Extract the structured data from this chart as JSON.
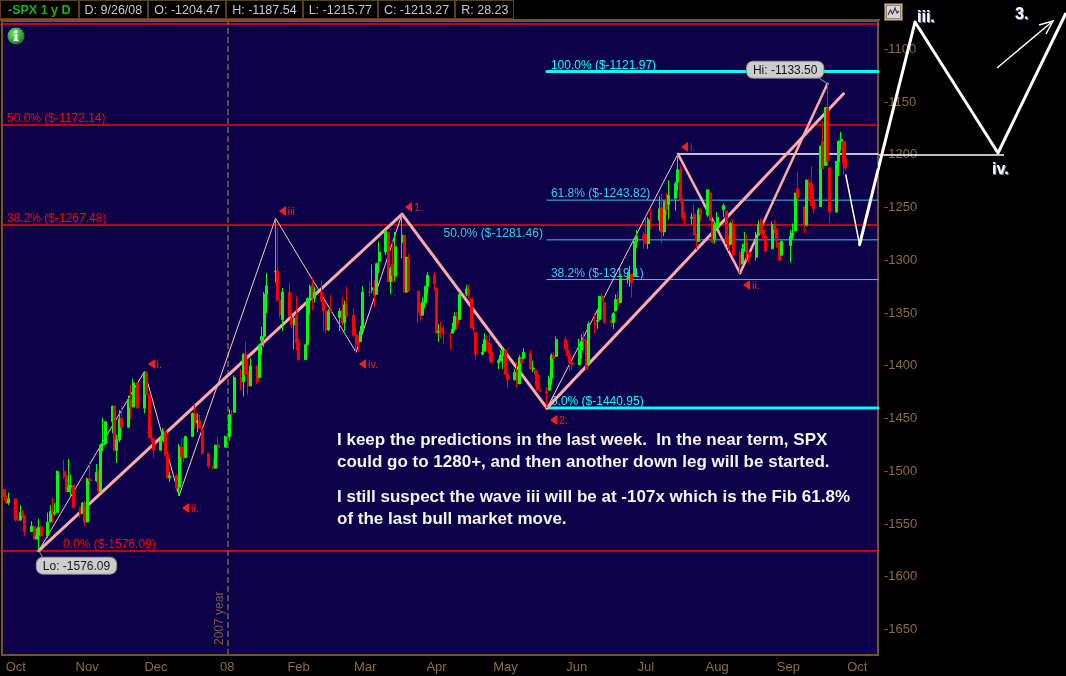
{
  "chart_data": {
    "type": "candlestick",
    "title": "-SPX 1 y D",
    "subtitle": "D: 9/26/08  O: -1204.47  H: -1187.54  L: -1215.77  C: -1213.27  R: 28.23",
    "x": [
      "2007-09-26",
      "2007-09-27",
      "2007-09-28",
      "2007-10-01",
      "2007-10-02",
      "2007-10-03",
      "2007-10-04",
      "2007-10-05",
      "2007-10-08",
      "2007-10-09",
      "2007-10-10",
      "2007-10-11",
      "2007-10-12",
      "2007-10-15",
      "2007-10-16",
      "2007-10-17",
      "2007-10-18",
      "2007-10-19",
      "2007-10-22",
      "2007-10-23",
      "2007-10-24",
      "2007-10-25",
      "2007-10-26",
      "2007-10-29",
      "2007-10-30",
      "2007-10-31",
      "2007-11-01",
      "2007-11-02",
      "2007-11-05",
      "2007-11-06",
      "2007-11-07",
      "2007-11-08",
      "2007-11-09",
      "2007-11-12",
      "2007-11-13",
      "2007-11-14",
      "2007-11-15",
      "2007-11-16",
      "2007-11-19",
      "2007-11-20",
      "2007-11-21",
      "2007-11-23",
      "2007-11-26",
      "2007-11-27",
      "2007-11-28",
      "2007-11-29",
      "2007-11-30",
      "2007-12-03",
      "2007-12-04",
      "2007-12-05",
      "2007-12-06",
      "2007-12-07",
      "2007-12-10",
      "2007-12-11",
      "2007-12-12",
      "2007-12-13",
      "2007-12-14",
      "2007-12-17",
      "2007-12-18",
      "2007-12-19",
      "2007-12-20",
      "2007-12-21",
      "2007-12-24",
      "2007-12-26",
      "2007-12-27",
      "2007-12-28",
      "2007-12-31",
      "2008-01-02",
      "2008-01-03",
      "2008-01-04",
      "2008-01-07",
      "2008-01-08",
      "2008-01-09",
      "2008-01-10",
      "2008-01-11",
      "2008-01-14",
      "2008-01-15",
      "2008-01-16",
      "2008-01-17",
      "2008-01-18",
      "2008-01-22",
      "2008-01-23",
      "2008-01-24",
      "2008-01-25",
      "2008-01-28",
      "2008-01-29",
      "2008-01-30",
      "2008-01-31",
      "2008-02-01",
      "2008-02-04",
      "2008-02-05",
      "2008-02-06",
      "2008-02-07",
      "2008-02-08",
      "2008-02-11",
      "2008-02-12",
      "2008-02-13",
      "2008-02-14",
      "2008-02-15",
      "2008-02-19",
      "2008-02-20",
      "2008-02-21",
      "2008-02-22",
      "2008-02-25",
      "2008-02-26",
      "2008-02-27",
      "2008-02-28",
      "2008-02-29",
      "2008-03-03",
      "2008-03-04",
      "2008-03-05",
      "2008-03-06",
      "2008-03-07",
      "2008-03-10",
      "2008-03-11",
      "2008-03-12",
      "2008-03-13",
      "2008-03-14",
      "2008-03-17",
      "2008-03-18",
      "2008-03-19",
      "2008-03-20",
      "2008-03-24",
      "2008-03-25",
      "2008-03-26",
      "2008-03-27",
      "2008-03-28",
      "2008-03-31",
      "2008-04-01",
      "2008-04-02",
      "2008-04-03",
      "2008-04-04",
      "2008-04-07",
      "2008-04-08",
      "2008-04-09",
      "2008-04-10",
      "2008-04-11",
      "2008-04-14",
      "2008-04-15",
      "2008-04-16",
      "2008-04-17",
      "2008-04-18",
      "2008-04-21",
      "2008-04-22",
      "2008-04-23",
      "2008-04-24",
      "2008-04-25",
      "2008-04-28",
      "2008-04-29",
      "2008-04-30",
      "2008-05-01",
      "2008-05-02",
      "2008-05-05",
      "2008-05-06",
      "2008-05-07",
      "2008-05-08",
      "2008-05-09",
      "2008-05-12",
      "2008-05-13",
      "2008-05-14",
      "2008-05-15",
      "2008-05-16",
      "2008-05-19",
      "2008-05-20",
      "2008-05-21",
      "2008-05-22",
      "2008-05-23",
      "2008-05-27",
      "2008-05-28",
      "2008-05-29",
      "2008-05-30",
      "2008-06-02",
      "2008-06-03",
      "2008-06-04",
      "2008-06-05",
      "2008-06-06",
      "2008-06-09",
      "2008-06-10",
      "2008-06-11",
      "2008-06-12",
      "2008-06-13",
      "2008-06-16",
      "2008-06-17",
      "2008-06-18",
      "2008-06-19",
      "2008-06-20",
      "2008-06-23",
      "2008-06-24",
      "2008-06-25",
      "2008-06-26",
      "2008-06-27",
      "2008-06-30",
      "2008-07-01",
      "2008-07-02",
      "2008-07-03",
      "2008-07-07",
      "2008-07-08",
      "2008-07-09",
      "2008-07-10",
      "2008-07-11",
      "2008-07-14",
      "2008-07-15",
      "2008-07-16",
      "2008-07-17",
      "2008-07-18",
      "2008-07-21",
      "2008-07-22",
      "2008-07-23",
      "2008-07-24",
      "2008-07-25",
      "2008-07-28",
      "2008-07-29",
      "2008-07-30",
      "2008-07-31",
      "2008-08-01",
      "2008-08-04",
      "2008-08-05",
      "2008-08-06",
      "2008-08-07",
      "2008-08-08",
      "2008-08-11",
      "2008-08-12",
      "2008-08-13",
      "2008-08-14",
      "2008-08-15",
      "2008-08-18",
      "2008-08-19",
      "2008-08-20",
      "2008-08-21",
      "2008-08-22",
      "2008-08-25",
      "2008-08-26",
      "2008-08-27",
      "2008-08-28",
      "2008-08-29",
      "2008-09-02",
      "2008-09-03",
      "2008-09-04",
      "2008-09-05",
      "2008-09-08",
      "2008-09-09",
      "2008-09-10",
      "2008-09-11",
      "2008-09-12",
      "2008-09-15",
      "2008-09-16",
      "2008-09-17",
      "2008-09-18",
      "2008-09-19",
      "2008-09-22",
      "2008-09-23",
      "2008-09-24",
      "2008-09-25",
      "2008-09-26"
    ],
    "ohlc": [
      [
        -1518,
        -1518,
        -1529,
        -1525
      ],
      [
        -1527,
        -1524,
        -1532,
        -1531
      ],
      [
        -1531,
        -1521,
        -1533,
        -1527
      ],
      [
        -1527,
        -1527,
        -1549,
        -1547
      ],
      [
        -1547,
        -1541,
        -1548,
        -1547
      ],
      [
        -1547,
        -1533,
        -1548,
        -1540
      ],
      [
        -1540,
        -1537,
        -1545,
        -1543
      ],
      [
        -1543,
        -1543,
        -1562,
        -1558
      ],
      [
        -1558,
        -1548,
        -1558,
        -1553
      ],
      [
        -1553,
        -1552,
        -1566,
        -1565
      ],
      [
        -1565,
        -1555,
        -1566,
        -1562
      ],
      [
        -1562,
        -1546,
        -1576.09,
        -1554
      ],
      [
        -1554,
        -1552,
        -1563,
        -1562
      ],
      [
        -1562,
        -1540,
        -1564,
        -1549
      ],
      [
        -1549,
        -1533,
        -1549,
        -1539
      ],
      [
        -1539,
        -1526,
        -1550,
        -1541
      ],
      [
        -1541,
        -1531,
        -1543,
        -1540
      ],
      [
        -1540,
        -1500,
        -1540,
        -1501
      ],
      [
        -1501,
        -1490,
        -1508,
        -1506
      ],
      [
        -1506,
        -1504,
        -1520,
        -1520
      ],
      [
        -1520,
        -1489,
        -1520,
        -1516
      ],
      [
        -1516,
        -1504,
        -1524,
        -1514
      ],
      [
        -1514,
        -1514,
        -1535,
        -1535
      ],
      [
        -1535,
        -1535,
        -1545,
        -1541
      ],
      [
        -1541,
        -1530,
        -1541,
        -1531
      ],
      [
        -1531,
        -1529,
        -1553,
        -1549
      ],
      [
        -1549,
        -1507,
        -1549,
        -1508
      ],
      [
        -1508,
        -1492,
        -1513,
        -1510
      ],
      [
        -1510,
        -1494,
        -1511,
        -1502
      ],
      [
        -1502,
        -1499,
        -1521,
        -1520
      ],
      [
        -1520,
        -1475,
        -1520,
        -1476
      ],
      [
        -1476,
        -1450,
        -1482,
        -1475
      ],
      [
        -1475,
        -1453,
        -1475,
        -1454
      ],
      [
        -1454,
        -1439,
        -1465,
        -1439
      ],
      [
        -1439,
        -1439,
        -1481,
        -1481
      ],
      [
        -1481,
        -1466,
        -1493,
        -1471
      ],
      [
        -1471,
        -1443,
        -1473,
        -1451
      ],
      [
        -1451,
        -1439,
        -1462,
        -1459
      ],
      [
        -1459,
        -1429,
        -1460,
        -1433
      ],
      [
        -1433,
        -1419,
        -1452,
        -1440
      ],
      [
        -1440,
        -1413,
        -1440,
        -1417
      ],
      [
        -1417,
        -1417,
        -1441,
        -1441
      ],
      [
        -1441,
        -1406,
        -1446,
        -1407
      ],
      [
        -1407,
        -1407,
        -1429,
        -1428
      ],
      [
        -1428,
        -1428,
        -1469,
        -1469
      ],
      [
        -1469,
        -1458,
        -1473,
        -1470
      ],
      [
        -1470,
        -1470,
        -1488,
        -1481
      ],
      [
        -1481,
        -1468,
        -1481,
        -1472
      ],
      [
        -1472,
        -1460,
        -1472,
        -1463
      ],
      [
        -1463,
        -1463,
        -1486,
        -1485
      ],
      [
        -1485,
        -1483,
        -1508,
        -1507
      ],
      [
        -1507,
        -1501,
        -1511,
        -1505
      ],
      [
        -1505,
        -1503,
        -1519,
        -1516
      ],
      [
        -1516,
        -1475,
        -1524,
        -1478
      ],
      [
        -1478,
        -1470,
        -1512,
        -1487
      ],
      [
        -1487,
        -1469,
        -1492,
        -1488
      ],
      [
        -1488,
        -1467,
        -1488,
        -1468
      ],
      [
        -1468,
        -1445,
        -1468,
        -1446
      ],
      [
        -1446,
        -1438,
        -1461,
        -1455
      ],
      [
        -1455,
        -1446,
        -1464,
        -1453
      ],
      [
        -1453,
        -1447,
        -1461,
        -1460
      ],
      [
        -1460,
        -1460,
        -1485,
        -1484
      ],
      [
        -1484,
        -1484,
        -1498,
        -1496
      ],
      [
        -1496,
        -1488,
        -1499,
        -1498
      ],
      [
        -1498,
        -1476,
        -1498,
        -1476
      ],
      [
        -1476,
        -1468,
        -1488,
        -1478
      ],
      [
        -1478,
        -1467,
        -1478,
        -1468
      ],
      [
        -1468,
        -1442,
        -1472,
        -1447
      ],
      [
        -1447,
        -1443,
        -1456,
        -1447
      ],
      [
        -1445,
        -1410,
        -1445,
        -1412
      ],
      [
        -1412,
        -1404,
        -1424,
        -1416
      ],
      [
        -1416,
        -1389,
        -1430,
        -1390
      ],
      [
        -1390,
        -1378,
        -1409,
        -1409
      ],
      [
        -1406,
        -1396,
        -1429,
        -1420
      ],
      [
        -1420,
        -1394,
        -1420,
        -1401
      ],
      [
        -1401,
        -1401,
        -1418,
        -1416
      ],
      [
        -1412,
        -1380,
        -1412,
        -1381
      ],
      [
        -1377,
        -1364,
        -1391,
        -1373
      ],
      [
        -1373,
        -1331,
        -1383,
        -1333
      ],
      [
        -1333,
        -1313,
        -1351,
        -1325
      ],
      [
        -1312,
        -1261,
        -1322,
        -1311
      ],
      [
        -1311,
        -1270,
        -1339,
        -1339
      ],
      [
        -1339,
        -1339,
        -1355,
        -1352
      ],
      [
        -1357,
        -1327,
        -1368,
        -1331
      ],
      [
        -1331,
        -1322,
        -1354,
        -1354
      ],
      [
        -1356,
        -1350,
        -1365,
        -1362
      ],
      [
        -1362,
        -1352,
        -1385,
        -1356
      ],
      [
        -1352,
        -1335,
        -1386,
        -1379
      ],
      [
        -1379,
        -1375,
        -1396,
        -1395
      ],
      [
        -1395,
        -1380,
        -1395,
        -1381
      ],
      [
        -1381,
        -1336,
        -1381,
        -1337
      ],
      [
        -1338,
        -1324,
        -1352,
        -1326
      ],
      [
        -1324,
        -1317,
        -1348,
        -1337
      ],
      [
        -1337,
        -1326,
        -1341,
        -1331
      ],
      [
        -1331,
        -1320,
        -1341,
        -1339
      ],
      [
        -1340,
        -1339,
        -1368,
        -1349
      ],
      [
        -1349,
        -1349,
        -1370,
        -1367
      ],
      [
        -1367,
        -1347,
        -1368,
        -1349
      ],
      [
        -1347,
        -1334,
        -1350,
        -1350
      ],
      [
        -1355,
        -1346,
        -1368,
        -1349
      ],
      [
        -1348,
        -1336,
        -1363,
        -1360
      ],
      [
        -1360,
        -1339,
        -1368,
        -1343
      ],
      [
        -1343,
        -1326,
        -1355,
        -1353
      ],
      [
        -1353,
        -1346,
        -1374,
        -1372
      ],
      [
        -1371,
        -1364,
        -1388,
        -1381
      ],
      [
        -1378,
        -1373,
        -1388,
        -1380
      ],
      [
        -1378,
        -1363,
        -1378,
        -1368
      ],
      [
        -1368,
        -1325,
        -1368,
        -1331
      ],
      [
        -1331,
        -1321,
        -1335,
        -1331
      ],
      [
        -1329,
        -1305,
        -1332,
        -1327
      ],
      [
        -1327,
        -1320,
        -1345,
        -1334
      ],
      [
        -1333,
        -1303,
        -1333,
        -1304
      ],
      [
        -1302,
        -1283,
        -1313,
        -1293
      ],
      [
        -1293,
        -1272,
        -1296,
        -1273
      ],
      [
        -1274,
        -1274,
        -1321,
        -1321
      ],
      [
        -1321,
        -1307,
        -1333,
        -1309
      ],
      [
        -1305,
        -1283,
        -1322,
        -1315
      ],
      [
        -1316,
        -1274,
        -1321,
        -1288
      ],
      [
        -1284,
        -1257,
        -1299,
        -1277
      ],
      [
        -1277,
        -1277,
        -1331,
        -1331
      ],
      [
        -1331,
        -1298,
        -1331,
        -1298
      ],
      [
        -1299,
        -1295,
        -1330,
        -1330
      ],
      [
        -1330,
        -1330,
        -1360,
        -1350
      ],
      [
        -1350,
        -1342,
        -1358,
        -1353
      ],
      [
        -1353,
        -1336,
        -1353,
        -1341
      ],
      [
        -1341,
        -1325,
        -1346,
        -1326
      ],
      [
        -1326,
        -1312,
        -1334,
        -1315
      ],
      [
        -1315,
        -1312,
        -1329,
        -1323
      ],
      [
        -1327,
        -1327,
        -1370,
        -1370
      ],
      [
        -1369,
        -1361,
        -1378,
        -1368
      ],
      [
        -1365,
        -1359,
        -1375,
        -1369
      ],
      [
        -1369,
        -1362,
        -1380,
        -1370
      ],
      [
        -1373,
        -1369,
        -1386,
        -1373
      ],
      [
        -1370,
        -1360,
        -1370,
        -1366
      ],
      [
        -1366,
        -1350,
        -1368,
        -1354
      ],
      [
        -1355,
        -1350,
        -1367,
        -1361
      ],
      [
        -1357,
        -1331,
        -1357,
        -1333
      ],
      [
        -1333,
        -1324,
        -1335,
        -1328
      ],
      [
        -1328,
        -1324,
        -1337,
        -1334
      ],
      [
        -1337,
        -1337,
        -1365,
        -1365
      ],
      [
        -1365,
        -1357,
        -1369,
        -1366
      ],
      [
        -1369,
        -1369,
        -1395,
        -1390
      ],
      [
        -1390,
        -1380,
        -1391,
        -1388
      ],
      [
        -1387,
        -1370,
        -1387,
        -1376
      ],
      [
        -1378,
        -1372,
        -1388,
        -1380
      ],
      [
        -1380,
        -1370,
        -1397,
        -1389
      ],
      [
        -1388,
        -1380,
        -1398,
        -1398
      ],
      [
        -1398,
        -1394,
        -1404,
        -1396
      ],
      [
        -1396,
        -1386,
        -1397,
        -1391
      ],
      [
        -1391,
        -1384,
        -1404,
        -1386
      ],
      [
        -1386,
        -1385,
        -1410,
        -1409
      ],
      [
        -1409,
        -1406,
        -1422,
        -1414
      ],
      [
        -1414,
        -1404,
        -1415,
        -1407
      ],
      [
        -1405,
        -1397,
        -1421,
        -1418
      ],
      [
        -1418,
        -1391,
        -1418,
        -1393
      ],
      [
        -1394,
        -1392,
        -1402,
        -1398
      ],
      [
        -1394,
        -1384,
        -1394,
        -1388
      ],
      [
        -1389,
        -1386,
        -1405,
        -1404
      ],
      [
        -1404,
        -1396,
        -1407,
        -1403
      ],
      [
        -1405,
        -1405,
        -1420,
        -1409
      ],
      [
        -1409,
        -1405,
        -1424,
        -1424
      ],
      [
        -1424,
        -1416,
        -1426,
        -1425
      ],
      [
        -1425,
        -1421,
        -1440.95,
        -1427
      ],
      [
        -1424,
        -1410,
        -1424,
        -1413
      ],
      [
        -1413,
        -1389,
        -1419,
        -1391
      ],
      [
        -1391,
        -1388,
        -1398,
        -1394
      ],
      [
        -1392,
        -1373,
        -1392,
        -1376
      ],
      [
        -1376,
        -1373,
        -1387,
        -1385
      ],
      [
        -1386,
        -1379,
        -1391,
        -1391
      ],
      [
        -1391,
        -1389,
        -1406,
        -1398
      ],
      [
        -1398,
        -1397,
        -1405,
        -1400
      ],
      [
        -1400,
        -1375,
        -1400,
        -1386
      ],
      [
        -1386,
        -1371,
        -1394,
        -1378
      ],
      [
        -1376,
        -1368,
        -1389,
        -1377
      ],
      [
        -1377,
        -1374,
        -1405,
        -1404
      ],
      [
        -1400,
        -1359,
        -1400,
        -1361
      ],
      [
        -1361,
        -1351,
        -1370,
        -1362
      ],
      [
        -1359,
        -1348,
        -1366,
        -1358
      ],
      [
        -1357,
        -1335,
        -1358,
        -1335
      ],
      [
        -1335,
        -1332,
        -1353,
        -1340
      ],
      [
        -1341,
        -1341,
        -1361,
        -1360
      ],
      [
        -1358,
        -1352,
        -1364,
        -1360
      ],
      [
        -1360,
        -1350,
        -1366,
        -1351
      ],
      [
        -1349,
        -1333,
        -1349,
        -1338
      ],
      [
        -1337,
        -1330,
        -1347,
        -1343
      ],
      [
        -1341,
        -1314,
        -1341,
        -1318
      ],
      [
        -1319,
        -1312,
        -1323,
        -1318
      ],
      [
        -1318,
        -1306,
        -1326,
        -1314
      ],
      [
        -1314,
        -1314,
        -1336,
        -1322
      ],
      [
        -1316,
        -1283,
        -1316,
        -1283
      ],
      [
        -1283,
        -1272,
        -1289,
        -1278
      ],
      [
        -1278,
        -1274,
        -1290,
        -1280
      ],
      [
        -1276,
        -1261,
        -1285,
        -1285
      ],
      [
        -1285,
        -1260,
        -1290,
        -1262
      ],
      [
        -1262,
        -1252,
        -1272,
        -1263
      ],
      [
        -1263,
        -1240,
        -1273,
        -1252
      ],
      [
        -1251,
        -1238,
        -1285,
        -1274
      ],
      [
        -1274,
        -1244,
        -1278,
        -1245
      ],
      [
        -1245,
        -1237,
        -1258,
        -1253
      ],
      [
        -1248,
        -1225,
        -1262,
        -1239
      ],
      [
        -1242,
        -1226,
        -1254,
        -1228
      ],
      [
        -1227,
        -1200,
        -1235,
        -1215
      ],
      [
        -1215,
        -1211,
        -1246,
        -1245
      ],
      [
        -1246,
        -1242,
        -1263,
        -1260
      ],
      [
        -1259,
        -1255,
        -1268,
        -1261
      ],
      [
        -1261,
        -1256,
        -1267,
        -1260
      ],
      [
        -1257,
        -1248,
        -1277,
        -1277
      ],
      [
        -1278,
        -1276,
        -1291,
        -1282
      ],
      [
        -1283,
        -1251,
        -1283,
        -1253
      ],
      [
        -1253,
        -1251,
        -1264,
        -1258
      ],
      [
        -1258,
        -1234,
        -1260,
        -1234
      ],
      [
        -1237,
        -1234,
        -1263,
        -1263
      ],
      [
        -1264,
        -1264,
        -1285,
        -1284
      ],
      [
        -1281,
        -1265,
        -1285,
        -1267
      ],
      [
        -1269,
        -1255,
        -1271,
        -1260
      ],
      [
        -1253,
        -1247,
        -1260,
        -1249
      ],
      [
        -1254,
        -1254,
        -1285,
        -1285
      ],
      [
        -1284,
        -1277,
        -1292,
        -1289
      ],
      [
        -1286,
        -1264,
        -1286,
        -1266
      ],
      [
        -1267,
        -1262,
        -1297,
        -1296
      ],
      [
        -1294,
        -1292,
        -1313,
        -1305
      ],
      [
        -1304,
        -1285,
        -1304,
        -1290
      ],
      [
        -1288,
        -1274,
        -1293,
        -1286
      ],
      [
        -1283,
        -1276,
        -1301,
        -1293
      ],
      [
        -1293,
        -1293,
        -1303,
        -1298
      ],
      [
        -1298,
        -1274,
        -1301,
        -1279
      ],
      [
        -1277,
        -1263,
        -1277,
        -1267
      ],
      [
        -1267,
        -1261,
        -1277,
        -1275
      ],
      [
        -1272,
        -1263,
        -1282,
        -1278
      ],
      [
        -1278,
        -1278,
        -1293,
        -1292
      ],
      [
        -1290,
        -1264,
        -1290,
        -1267
      ],
      [
        -1267,
        -1263,
        -1276,
        -1272
      ],
      [
        -1271,
        -1271,
        -1289,
        -1282
      ],
      [
        -1284,
        -1284,
        -1301,
        -1301
      ],
      [
        -1296,
        -1282,
        -1297,
        -1283
      ],
      [
        -1287,
        -1272,
        -1303,
        -1278
      ],
      [
        -1278,
        -1266,
        -1281,
        -1275
      ],
      [
        -1273,
        -1237,
        -1273,
        -1237
      ],
      [
        -1233,
        -1217,
        -1245,
        -1242
      ],
      [
        -1250,
        -1250,
        -1275,
        -1268
      ],
      [
        -1267,
        -1224,
        -1269,
        -1225
      ],
      [
        -1227,
        -1224,
        -1244,
        -1232
      ],
      [
        -1229,
        -1212,
        -1249,
        -1249
      ],
      [
        -1245,
        -1233,
        -1256,
        -1252
      ],
      [
        -1250,
        -1192,
        -1250,
        -1193
      ],
      [
        -1188,
        -1169,
        -1214,
        -1214
      ],
      [
        -1211,
        -1156,
        -1211,
        -1156
      ],
      [
        -1157,
        -1133.5,
        -1211,
        -1207
      ],
      [
        -1213,
        -1213,
        -1265,
        -1255
      ],
      [
        -1255,
        -1207,
        -1256,
        -1207
      ],
      [
        -1208,
        -1187,
        -1221,
        -1188
      ],
      [
        -1188,
        -1179,
        -1197,
        -1186
      ],
      [
        -1188,
        -1188,
        -1220,
        -1209
      ],
      [
        -1204.47,
        -1187.54,
        -1215.77,
        -1213.27
      ]
    ],
    "colors": [
      "#ff0000",
      "#ff0000",
      "#00ff00",
      "#ff0000",
      "#ff0000",
      "#00ff00",
      "#ff0000",
      "#ff0000",
      "#00ff00",
      "#ff0000",
      "#00ff00",
      "#00ff00",
      "#ff0000",
      "#00ff00",
      "#00ff00",
      "#ff0000",
      "#00ff00",
      "#00ff00",
      "#ff0000",
      "#ff0000",
      "#00ff00",
      "#00ff00",
      "#ff0000",
      "#ff0000",
      "#00ff00",
      "#ff0000",
      "#00ff00",
      "#ff0000",
      "#00ff00",
      "#ff0000",
      "#00ff00",
      "#00ff00",
      "#00ff00",
      "#00ff00",
      "#ff0000",
      "#00ff00",
      "#00ff00",
      "#ff0000",
      "#00ff00",
      "#ff0000",
      "#00ff00",
      "#ff0000",
      "#00ff00",
      "#ff0000",
      "#ff0000",
      "#ff0000",
      "#ff0000",
      "#00ff00",
      "#00ff00",
      "#ff0000",
      "#ff0000",
      "#00ff00",
      "#ff0000",
      "#00ff00",
      "#ff0000",
      "#ff0000",
      "#00ff00",
      "#00ff00",
      "#ff0000",
      "#00ff00",
      "#ff0000",
      "#ff0000",
      "#ff0000",
      "#ff0000",
      "#00ff00",
      "#ff0000",
      "#00ff00",
      "#00ff00",
      "#ff0000",
      "#00ff00",
      "#ff0000",
      "#00ff00",
      "#ff0000",
      "#ff0000",
      "#00ff00",
      "#ff0000",
      "#00ff00",
      "#00ff00",
      "#00ff00",
      "#00ff00",
      "#00ff00",
      "#ff0000",
      "#ff0000",
      "#00ff00",
      "#ff0000",
      "#ff0000",
      "#00ff00",
      "#ff0000",
      "#ff0000",
      "#00ff00",
      "#00ff00",
      "#00ff00",
      "#ff0000",
      "#00ff00",
      "#ff0000",
      "#ff0000",
      "#ff0000",
      "#00ff00",
      "#ff0000",
      "#00ff00",
      "#ff0000",
      "#00ff00",
      "#ff0000",
      "#ff0000",
      "#ff0000",
      "#ff0000",
      "#00ff00",
      "#00ff00",
      "#ff0000",
      "#00ff00",
      "#ff0000",
      "#00ff00",
      "#00ff00",
      "#00ff00",
      "#ff0000",
      "#00ff00",
      "#ff0000",
      "#00ff00",
      "#00ff00",
      "#ff0000",
      "#00ff00",
      "#ff0000",
      "#ff0000",
      "#ff0000",
      "#00ff00",
      "#00ff00",
      "#00ff00",
      "#ff0000",
      "#ff0000",
      "#00ff00",
      "#ff0000",
      "#ff0000",
      "#ff0000",
      "#00ff00",
      "#00ff00",
      "#ff0000",
      "#00ff00",
      "#00ff00",
      "#ff0000",
      "#ff0000",
      "#ff0000",
      "#ff0000",
      "#00ff00",
      "#00ff00",
      "#ff0000",
      "#ff0000",
      "#ff0000",
      "#00ff00",
      "#00ff00",
      "#00ff00",
      "#ff0000",
      "#ff0000",
      "#00ff00",
      "#ff0000",
      "#00ff00",
      "#ff0000",
      "#00ff00",
      "#ff0000",
      "#00ff00",
      "#ff0000",
      "#ff0000",
      "#ff0000",
      "#ff0000",
      "#00ff00",
      "#00ff00",
      "#ff0000",
      "#00ff00",
      "#ff0000",
      "#ff0000",
      "#ff0000",
      "#ff0000",
      "#00ff00",
      "#00ff00",
      "#ff0000",
      "#ff0000",
      "#00ff00",
      "#ff0000",
      "#00ff00",
      "#00ff00",
      "#ff0000",
      "#ff0000",
      "#ff0000",
      "#00ff00",
      "#00ff00",
      "#ff0000",
      "#00ff00",
      "#00ff00",
      "#00ff00",
      "#ff0000",
      "#00ff00",
      "#00ff00",
      "#ff0000",
      "#ff0000",
      "#00ff00",
      "#ff0000",
      "#00ff00",
      "#ff0000",
      "#00ff00",
      "#ff0000",
      "#00ff00",
      "#00ff00",
      "#00ff00",
      "#ff0000",
      "#ff0000",
      "#ff0000",
      "#00ff00",
      "#ff0000",
      "#ff0000",
      "#00ff00",
      "#ff0000",
      "#00ff00",
      "#ff0000",
      "#ff0000",
      "#00ff00",
      "#00ff00",
      "#00ff00",
      "#ff0000",
      "#ff0000",
      "#00ff00",
      "#ff0000",
      "#ff0000",
      "#00ff00",
      "#00ff00",
      "#ff0000",
      "#ff0000",
      "#00ff00",
      "#00ff00",
      "#ff0000",
      "#ff0000",
      "#ff0000",
      "#00ff00",
      "#ff0000",
      "#ff0000",
      "#ff0000",
      "#00ff00",
      "#00ff00",
      "#00ff00",
      "#00ff00",
      "#ff0000",
      "#ff0000",
      "#00ff00",
      "#ff0000",
      "#ff0000",
      "#ff0000",
      "#00ff00",
      "#ff0000",
      "#00ff00",
      "#ff0000",
      "#ff0000",
      "#00ff00",
      "#00ff00",
      "#00ff00",
      "#ff0000",
      "#ff0000"
    ],
    "series": [
      {
        "type": "line",
        "color": "#ffc4c4",
        "x": [
          "2007-10-11",
          "2007-11-26",
          "2007-12-11",
          "2008-01-22",
          "2008-02-26",
          "2008-03-17"
        ],
        "values": [
          -1576.09,
          -1406,
          -1524,
          -1261,
          -1388,
          -1257
        ]
      },
      {
        "type": "line",
        "color": "#ffaaaa",
        "x": [
          "2007-10-11",
          "2008-03-17",
          "2008-05-19",
          "2008-09-25"
        ],
        "values": [
          -1576.09,
          -1257,
          -1440.95,
          -1143
        ]
      },
      {
        "type": "line",
        "color": "#ffc4c4",
        "x": [
          "2008-05-19",
          "2008-07-15"
        ],
        "values": [
          -1440.95,
          -1200
        ]
      },
      {
        "type": "line",
        "color": "#ffaaaa",
        "x": [
          "2008-07-15",
          "2008-08-11",
          "2008-09-18"
        ],
        "values": [
          -1200,
          -1313,
          -1133.5
        ]
      },
      {
        "type": "line",
        "color": "#ffffff",
        "x": [
          "2008-07-15",
          "2008-10-10"
        ],
        "values": [
          -1200,
          -1200
        ]
      },
      {
        "type": "line",
        "name": "100.0% ($-1121.97)",
        "color": "#00ffff",
        "x": [
          "2008-05-19",
          "2008-10-10"
        ],
        "values": [
          -1121.97,
          -1121.97
        ]
      },
      {
        "type": "line",
        "name": "61.8% ($-1243.82)",
        "color": "#33ccf5",
        "x": [
          "2008-05-19",
          "2008-10-10"
        ],
        "values": [
          -1243.82,
          -1243.82
        ]
      },
      {
        "type": "line",
        "name": "50.0% ($-1281.46)",
        "color": "#33ccf5",
        "x": [
          "2008-05-19",
          "2008-10-10"
        ],
        "values": [
          -1281.46,
          -1281.46
        ]
      },
      {
        "type": "line",
        "name": "38.2% ($-1319.1)",
        "color": "#33ccf5",
        "x": [
          "2008-05-19",
          "2008-10-10"
        ],
        "values": [
          -1319.1,
          -1319.1
        ]
      },
      {
        "type": "line",
        "name": "0.0% ($-1440.95)",
        "color": "#00ffff",
        "x": [
          "2008-05-19",
          "2008-10-10"
        ],
        "values": [
          -1440.95,
          -1440.95
        ]
      },
      {
        "type": "line",
        "color": "#ffffff",
        "x": [
          "2008-09-26",
          "2008-10-02"
        ],
        "values": [
          -1220,
          -1286
        ]
      },
      {
        "type": "line",
        "color": "#ffffff",
        "x": [
          "2008-10-02",
          "2008-10-10"
        ],
        "values": [
          -1286,
          -1215
        ]
      }
    ],
    "ref_lines": [
      {
        "axis": "y",
        "value": -1076.8,
        "color": "#ff0000"
      },
      {
        "axis": "y",
        "value": -1172.14,
        "label": "50.0% ($-1172.14)",
        "color": "#ff0000"
      },
      {
        "axis": "y",
        "value": -1267.48,
        "label": "38.2% ($-1267.48)",
        "color": "#ff0000"
      },
      {
        "axis": "y",
        "value": -1576.09,
        "label": "0.0% ($-1576.09)",
        "color": "#ff0000"
      },
      {
        "axis": "x",
        "value": "2008-01-01",
        "label": "2007 year",
        "color": "#7a6040",
        "line_style": "dashed"
      }
    ],
    "annotations": [
      {
        "text": "Hi: -1133.50",
        "x": "2008-09-18",
        "y": -1133.5
      },
      {
        "text": "Lo: -1576.09",
        "x": "2007-10-11",
        "y": -1576.09
      },
      {
        "text": "i.",
        "x": "2007-11-26",
        "y": -1406
      },
      {
        "text": "ii.",
        "x": "2007-12-11",
        "y": -1524
      },
      {
        "text": "iii",
        "x": "2008-01-22",
        "y": -1261
      },
      {
        "text": "iv.",
        "x": "2008-02-26",
        "y": -1388
      },
      {
        "text": "1.",
        "x": "2008-03-17",
        "y": -1257
      },
      {
        "text": "2.",
        "x": "2008-05-19",
        "y": -1440.95
      },
      {
        "text": "i.",
        "x": "2008-07-15",
        "y": -1200
      },
      {
        "text": "ii.",
        "x": "2008-08-11",
        "y": -1313
      },
      "iii.",
      "iv.",
      "3.",
      "I keep the predictions in the last week.  In the near term, SPX could go to 1280+, and then another down leg will be started.",
      "I still suspect the wave iii will be at -107x which is the Fib 61.8% of the last bull market move."
    ],
    "xlim": [
      "2007-09-25",
      "2008-10-10"
    ],
    "ylim": [
      -1675,
      -1074
    ],
    "xticks": [
      {
        "value": "2007-10-01",
        "label": "Oct"
      },
      {
        "value": "2007-11-01",
        "label": "Nov"
      },
      {
        "value": "2007-12-01",
        "label": "Dec"
      },
      {
        "value": "2008-01-01",
        "label": "08"
      },
      {
        "value": "2008-02-01",
        "label": "Feb"
      },
      {
        "value": "2008-03-01",
        "label": "Mar"
      },
      {
        "value": "2008-04-01",
        "label": "Apr"
      },
      {
        "value": "2008-05-01",
        "label": "May"
      },
      {
        "value": "2008-06-01",
        "label": "Jun"
      },
      {
        "value": "2008-07-01",
        "label": "Jul"
      },
      {
        "value": "2008-08-01",
        "label": "Aug"
      },
      {
        "value": "2008-09-01",
        "label": "Sep"
      },
      {
        "value": "2008-10-01",
        "label": "Oct"
      }
    ],
    "yticks": [
      -1650,
      -1600,
      -1550,
      -1500,
      -1450,
      -1400,
      -1350,
      -1300,
      -1250,
      -1200,
      -1150,
      -1100
    ]
  }
}
